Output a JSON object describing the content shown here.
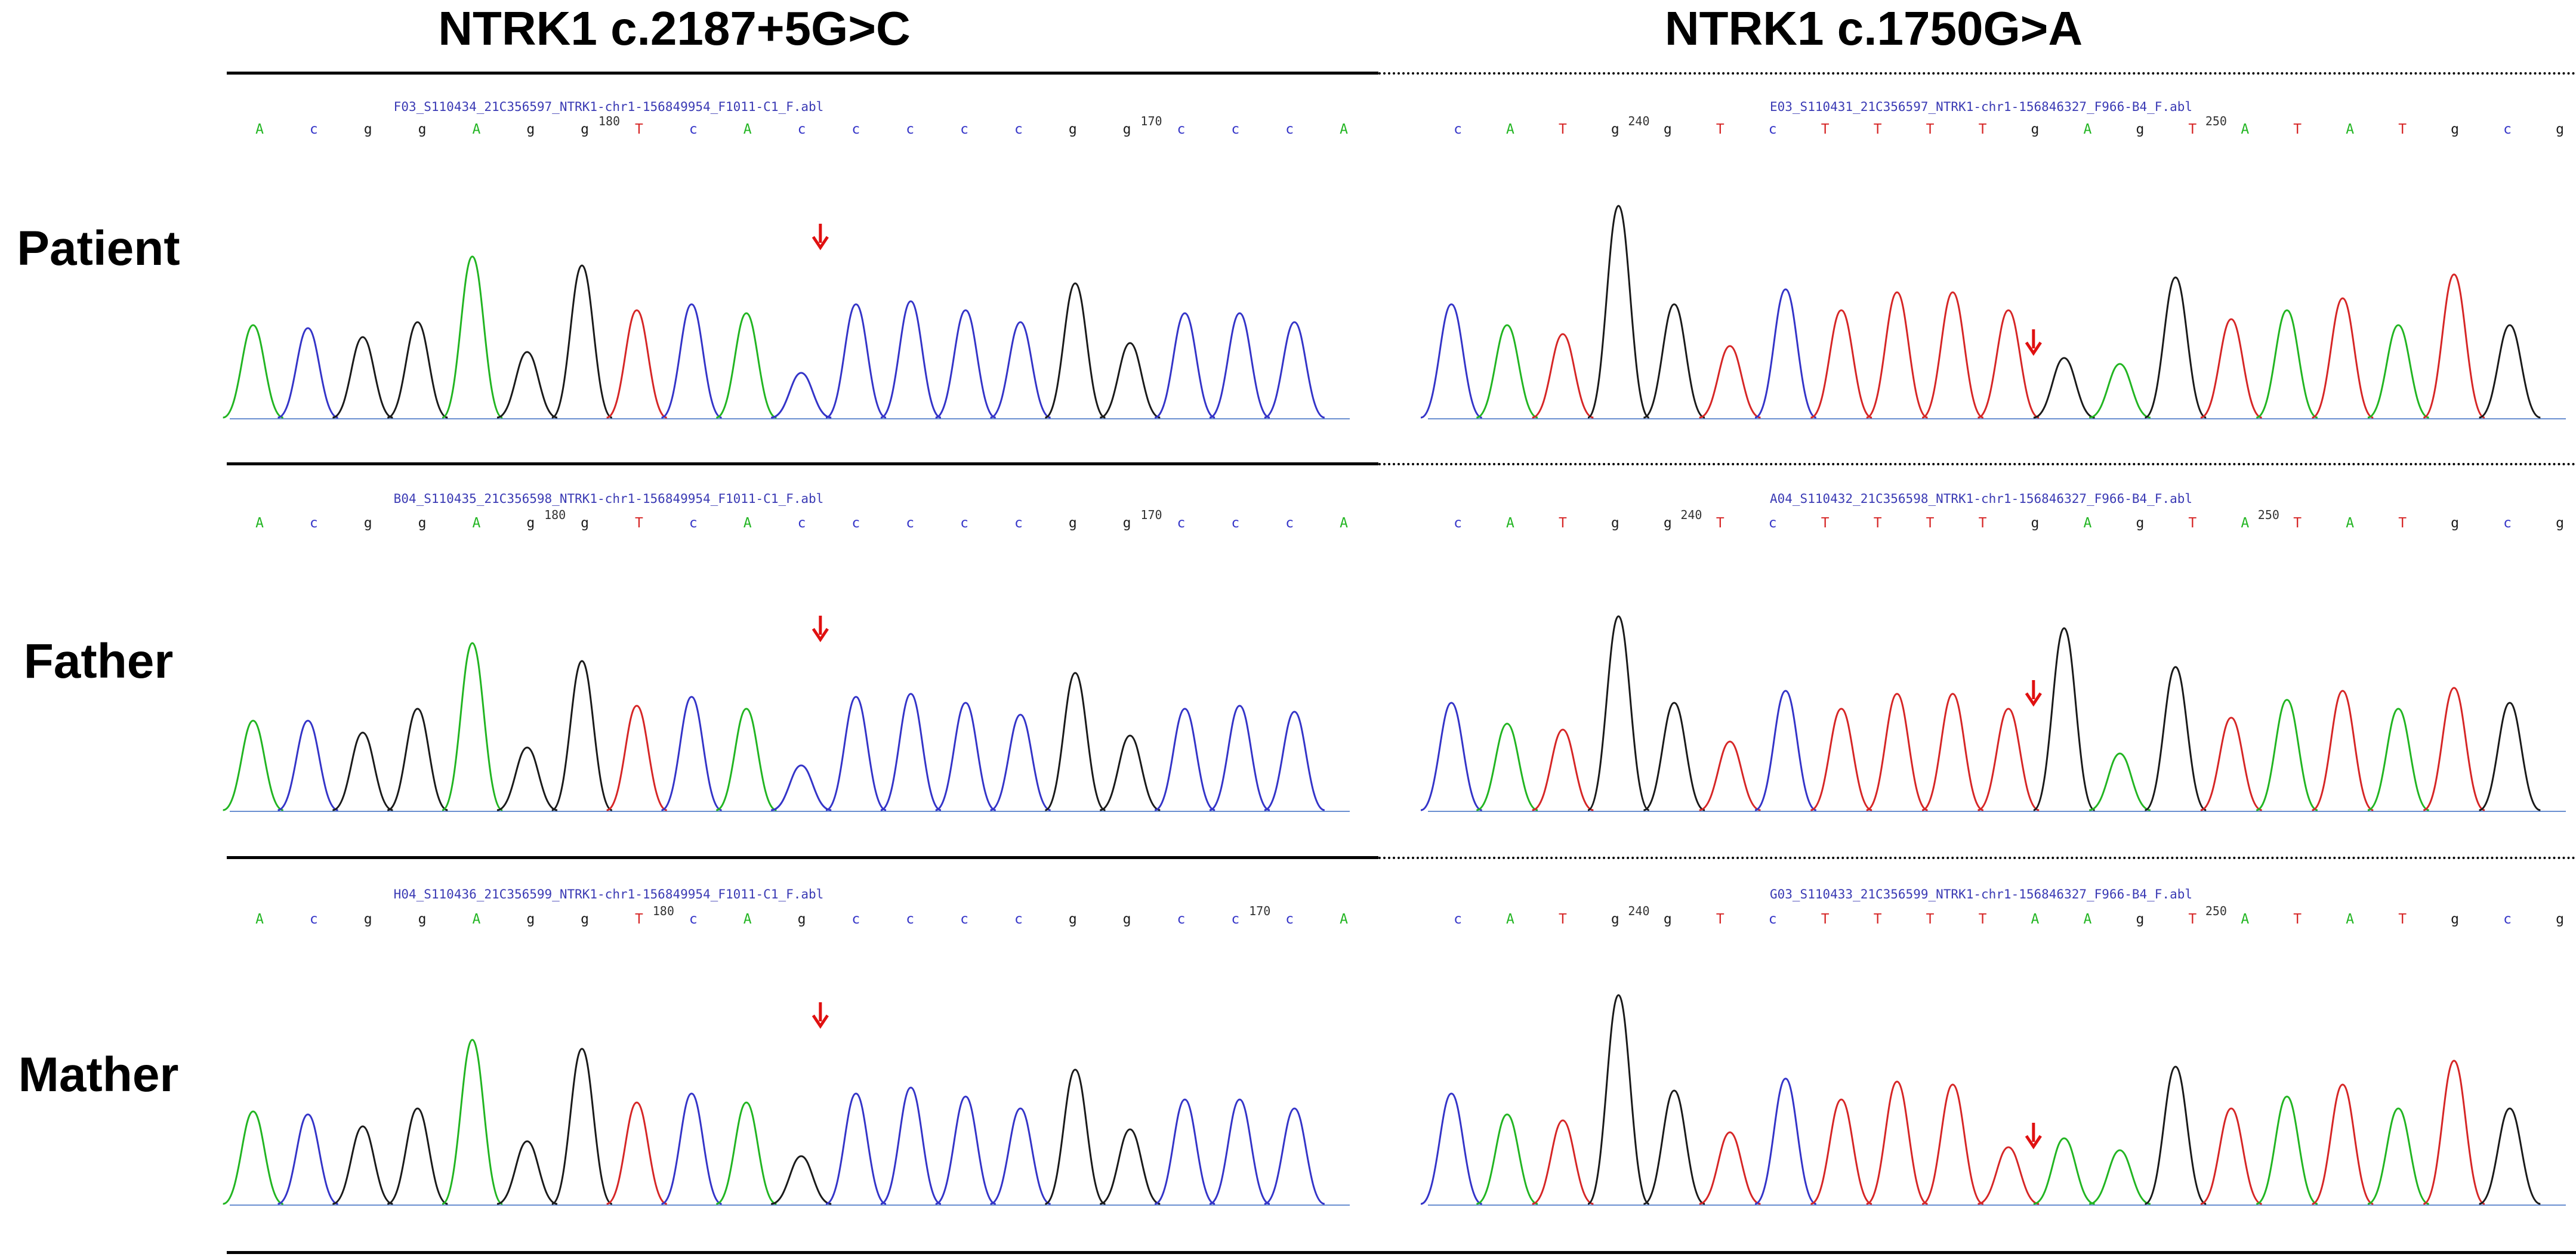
{
  "columns": [
    {
      "title": "NTRK1 c.2187+5G>C",
      "panels": [
        {
          "file": "F03_S110434_21C356597_NTRK1-chr1-156849954_F1011-C1_F.abl",
          "bases": [
            "A",
            "C",
            "G",
            "G",
            "A",
            "G",
            "G",
            "T",
            "C",
            "A",
            "C",
            "C",
            "C",
            "C",
            "C",
            "G",
            "G",
            "C",
            "C",
            "C",
            "A"
          ],
          "positions": [
            {
              "label": "180",
              "after_base": 6
            },
            {
              "label": "170",
              "after_base": 16
            }
          ],
          "arrow_base": 10
        },
        {
          "file": "B04_S110435_21C356598_NTRK1-chr1-156849954_F1011-C1_F.abl",
          "bases": [
            "A",
            "C",
            "G",
            "G",
            "A",
            "G",
            "G",
            "T",
            "C",
            "A",
            "C",
            "C",
            "C",
            "C",
            "C",
            "G",
            "G",
            "C",
            "C",
            "C",
            "A"
          ],
          "positions": [
            {
              "label": "180",
              "after_base": 5
            },
            {
              "label": "170",
              "after_base": 16
            }
          ],
          "arrow_base": 10
        },
        {
          "file": "H04_S110436_21C356599_NTRK1-chr1-156849954_F1011-C1_F.abl",
          "bases": [
            "A",
            "C",
            "G",
            "G",
            "A",
            "G",
            "G",
            "T",
            "C",
            "A",
            "G",
            "C",
            "C",
            "C",
            "C",
            "G",
            "G",
            "C",
            "C",
            "C",
            "A"
          ],
          "positions": [
            {
              "label": "180",
              "after_base": 7
            },
            {
              "label": "170",
              "after_base": 18
            }
          ],
          "arrow_base": 10
        }
      ]
    },
    {
      "title": "NTRK1 c.1750G>A",
      "panels": [
        {
          "file": "E03_S110431_21C356597_NTRK1-chr1-156846327_F966-B4_F.abl",
          "bases": [
            "C",
            "A",
            "T",
            "G",
            "G",
            "T",
            "C",
            "T",
            "T",
            "T",
            "T",
            "G",
            "A",
            "G",
            "T",
            "A",
            "T",
            "A",
            "T",
            "G",
            "C",
            "G"
          ],
          "positions": [
            {
              "label": "240",
              "after_base": 3
            },
            {
              "label": "250",
              "after_base": 14
            }
          ],
          "arrow_base": 10
        },
        {
          "file": "A04_S110432_21C356598_NTRK1-chr1-156846327_F966-B4_F.abl",
          "bases": [
            "C",
            "A",
            "T",
            "G",
            "G",
            "T",
            "C",
            "T",
            "T",
            "T",
            "T",
            "G",
            "A",
            "G",
            "T",
            "A",
            "T",
            "A",
            "T",
            "G",
            "C",
            "G"
          ],
          "positions": [
            {
              "label": "240",
              "after_base": 4
            },
            {
              "label": "250",
              "after_base": 15
            }
          ],
          "arrow_base": 10
        },
        {
          "file": "G03_S110433_21C356599_NTRK1-chr1-156846327_F966-B4_F.abl",
          "bases": [
            "C",
            "A",
            "T",
            "G",
            "G",
            "T",
            "C",
            "T",
            "T",
            "T",
            "T",
            "A",
            "A",
            "G",
            "T",
            "A",
            "T",
            "A",
            "T",
            "G",
            "C",
            "G"
          ],
          "positions": [
            {
              "label": "240",
              "after_base": 3
            },
            {
              "label": "250",
              "after_base": 14
            }
          ],
          "arrow_base": 10
        }
      ]
    }
  ],
  "rows": [
    {
      "label": "Patient"
    },
    {
      "label": "Father"
    },
    {
      "label": "Mather"
    }
  ],
  "base_colors": {
    "A": "#22b522",
    "C": "#3434c8",
    "G": "#1a1a1a",
    "T": "#d62626"
  },
  "arrow_color": "#e01010"
}
